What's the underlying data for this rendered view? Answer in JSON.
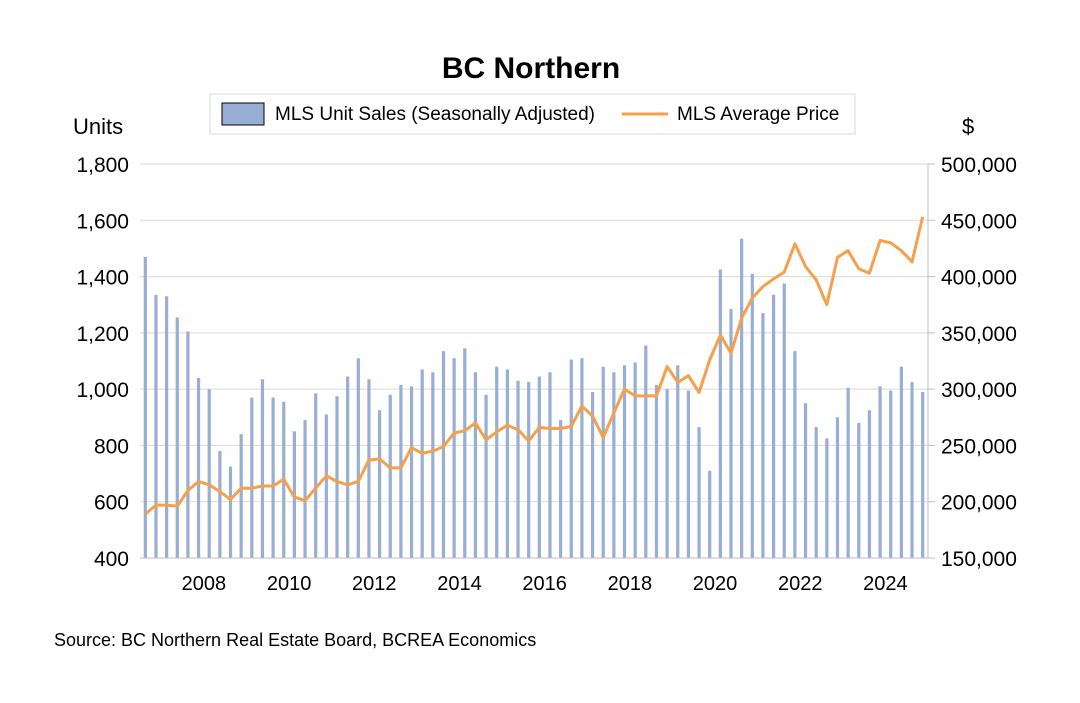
{
  "chart_data": {
    "type": "bar-line",
    "title": "BC Northern",
    "y_left_label": "Units",
    "y_right_label": "$",
    "y_left_range": [
      400,
      1800
    ],
    "y_left_ticks": [
      "400",
      "600",
      "800",
      "1,000",
      "1,200",
      "1,400",
      "1,600",
      "1,800"
    ],
    "y_right_range": [
      150000,
      500000
    ],
    "y_right_ticks": [
      "150,000",
      "200,000",
      "250,000",
      "300,000",
      "350,000",
      "400,000",
      "450,000",
      "500,000"
    ],
    "x_range": [
      2006.5,
      2025.0
    ],
    "x_tick_values": [
      2008,
      2010,
      2012,
      2014,
      2016,
      2018,
      2020,
      2022,
      2024
    ],
    "x_tick_labels": [
      "2008",
      "2010",
      "2012",
      "2014",
      "2016",
      "2018",
      "2020",
      "2022",
      "2024"
    ],
    "grid": true,
    "legend_position": "top-center",
    "series": [
      {
        "name": "MLS Unit Sales (Seasonally Adjusted)",
        "kind": "bar",
        "axis": "left",
        "color": "#98AED4",
        "x": [
          2006.625,
          2006.875,
          2007.125,
          2007.375,
          2007.625,
          2007.875,
          2008.125,
          2008.375,
          2008.625,
          2008.875,
          2009.125,
          2009.375,
          2009.625,
          2009.875,
          2010.125,
          2010.375,
          2010.625,
          2010.875,
          2011.125,
          2011.375,
          2011.625,
          2011.875,
          2012.125,
          2012.375,
          2012.625,
          2012.875,
          2013.125,
          2013.375,
          2013.625,
          2013.875,
          2014.125,
          2014.375,
          2014.625,
          2014.875,
          2015.125,
          2015.375,
          2015.625,
          2015.875,
          2016.125,
          2016.375,
          2016.625,
          2016.875,
          2017.125,
          2017.375,
          2017.625,
          2017.875,
          2018.125,
          2018.375,
          2018.625,
          2018.875,
          2019.125,
          2019.375,
          2019.625,
          2019.875,
          2020.125,
          2020.375,
          2020.625,
          2020.875,
          2021.125,
          2021.375,
          2021.625,
          2021.875,
          2022.125,
          2022.375,
          2022.625,
          2022.875,
          2023.125,
          2023.375,
          2023.625,
          2023.875,
          2024.125,
          2024.375,
          2024.625,
          2024.875
        ],
        "values": [
          1470,
          1335,
          1330,
          1255,
          1205,
          1040,
          1000,
          780,
          725,
          840,
          970,
          1035,
          970,
          955,
          850,
          890,
          985,
          910,
          975,
          1045,
          1110,
          1035,
          925,
          980,
          1015,
          1010,
          1070,
          1060,
          1135,
          1110,
          1145,
          1060,
          980,
          1080,
          1070,
          1030,
          1025,
          1045,
          1060,
          890,
          1105,
          1110,
          990,
          1080,
          1060,
          1085,
          1095,
          1155,
          1015,
          1000,
          1085,
          995,
          865,
          710,
          1425,
          1285,
          1535,
          1410,
          1270,
          1335,
          1375,
          1135,
          950,
          865,
          825,
          900,
          1005,
          880,
          925,
          1010,
          995,
          1080,
          1025,
          990
        ]
      },
      {
        "name": "MLS Average Price",
        "kind": "line",
        "axis": "right",
        "color": "#F5A04A",
        "x": [
          2006.625,
          2006.875,
          2007.125,
          2007.375,
          2007.625,
          2007.875,
          2008.125,
          2008.375,
          2008.625,
          2008.875,
          2009.125,
          2009.375,
          2009.625,
          2009.875,
          2010.125,
          2010.375,
          2010.625,
          2010.875,
          2011.125,
          2011.375,
          2011.625,
          2011.875,
          2012.125,
          2012.375,
          2012.625,
          2012.875,
          2013.125,
          2013.375,
          2013.625,
          2013.875,
          2014.125,
          2014.375,
          2014.625,
          2014.875,
          2015.125,
          2015.375,
          2015.625,
          2015.875,
          2016.125,
          2016.375,
          2016.625,
          2016.875,
          2017.125,
          2017.375,
          2017.625,
          2017.875,
          2018.125,
          2018.375,
          2018.625,
          2018.875,
          2019.125,
          2019.375,
          2019.625,
          2019.875,
          2020.125,
          2020.375,
          2020.625,
          2020.875,
          2021.125,
          2021.375,
          2021.625,
          2021.875,
          2022.125,
          2022.375,
          2022.625,
          2022.875,
          2023.125,
          2023.375,
          2023.625,
          2023.875,
          2024.125,
          2024.375,
          2024.625,
          2024.875
        ],
        "values": [
          189000,
          197000,
          197000,
          196000,
          210000,
          218000,
          215000,
          209000,
          202000,
          212000,
          212000,
          214000,
          214000,
          220000,
          204000,
          201000,
          212000,
          223000,
          218000,
          215000,
          218000,
          237000,
          238000,
          230000,
          230000,
          248000,
          243000,
          245000,
          249000,
          261000,
          263000,
          270000,
          255000,
          262000,
          268000,
          264000,
          254000,
          266000,
          265000,
          265000,
          267000,
          285000,
          276000,
          257000,
          279000,
          300000,
          294000,
          294000,
          294000,
          320000,
          306000,
          312000,
          297000,
          326000,
          348000,
          332000,
          363000,
          381000,
          391000,
          398000,
          404000,
          429000,
          409000,
          397000,
          375000,
          417000,
          423000,
          407000,
          403000,
          432000,
          430000,
          423000,
          413000,
          453000
        ]
      }
    ],
    "source": "Source:  BC Northern Real Estate Board, BCREA Economics"
  }
}
